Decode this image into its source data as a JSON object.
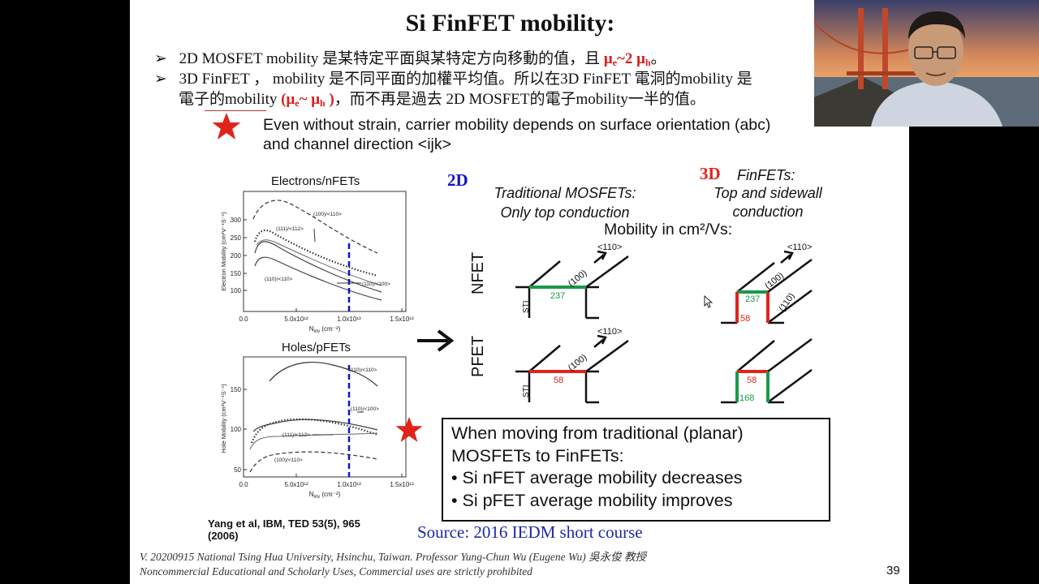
{
  "slide": {
    "title": "Si FinFET mobility:",
    "bullets": [
      {
        "arrow": "➢",
        "pre": "2D MOSFET mobility 是某特定平面與某特定方向移動的值，且 ",
        "mu_e": "μ",
        "e_sub": "e",
        "mid": "~2 ",
        "mu_h": "μ",
        "h_sub": "h",
        "post": "。"
      },
      {
        "arrow": "➢",
        "line1": "3D FinFET ， mobility 是不同平面的加權平均值。所以在3D FinFET 電洞的mobility 是",
        "line2_pre": "電子的mobility ",
        "paren": "(μ",
        "e_sub": "e",
        "tilde": "~ μ",
        "h_sub": "h",
        "close": " )",
        "line2_post": "，而不再是過去 2D MOSFET的電子mobility一半的值。"
      }
    ],
    "strain_note": [
      "Even without strain, carrier mobility depends on surface orientation (abc)",
      "and channel direction <ijk>"
    ],
    "plots": {
      "electrons": {
        "title": "Electrons/nFETs",
        "ylabel": "Electron Mobility (cm²V⁻¹S⁻¹)",
        "xlabel": "N",
        "xlabel_sub": "inv",
        "xlabel_unit": " (cm⁻²)",
        "yticks": [
          "300",
          "250",
          "200",
          "150",
          "100"
        ],
        "xticks": [
          "0.0",
          "5.0x10¹²",
          "1.0x10¹³",
          "1.5x10¹³"
        ],
        "curve_labels": [
          "(100)/<110>",
          "(111)/<112>",
          "(110)/<110>",
          "(110)/<100>"
        ]
      },
      "holes": {
        "title": "Holes/pFETs",
        "ylabel": "Hole Mobility (cm²V⁻¹S⁻¹)",
        "xlabel": "N",
        "xlabel_sub": "inv",
        "xlabel_unit": " (cm⁻²)",
        "yticks": [
          "150",
          "100",
          "50"
        ],
        "xticks": [
          "0.0",
          "5.0x10¹²",
          "1.0x10¹³",
          "1.5x10¹³"
        ],
        "curve_labels": [
          "(110)/<110>",
          "(110)/<100>",
          "(111)/<112>",
          "(100)/<110>"
        ]
      }
    },
    "citation": [
      "Yang et al, IBM, TED 53(5), 965",
      "(2006)"
    ],
    "label_2d": "2D",
    "label_3d": "3D",
    "traditional": [
      "Traditional MOSFETs:",
      "Only top conduction"
    ],
    "finfets": [
      "FinFETs:",
      "Top and sidewall",
      "conduction"
    ],
    "mobility_units": "Mobility in cm²/Vs:",
    "row_labels": {
      "nfet": "NFET",
      "pfet": "PFET"
    },
    "diagram": {
      "sti": "STI",
      "dir110": "<110>",
      "plane100": "(100)",
      "plane110": "(110)",
      "nfet_2d_top": "237",
      "nfet_3d_top": "237",
      "nfet_3d_side": "58",
      "pfet_2d_top": "58",
      "pfet_3d_top": "58",
      "pfet_3d_side": "168"
    },
    "summary": [
      "When moving from traditional (planar)",
      "MOSFETs to FinFETs:",
      "• Si nFET average mobility decreases",
      "• Si pFET average mobility improves"
    ],
    "source": "Source: 2016 IEDM short course",
    "footer": [
      "V. 20200915 National Tsing Hua University, Hsinchu, Taiwan. Professor Yung-Chun Wu (Eugene Wu) 吳永俊 教授",
      "Noncommercial Educational and Scholarly Uses, Commercial uses are strictly prohibited"
    ],
    "page_number": "39",
    "colors": {
      "red": "#e0241c",
      "green": "#1a9a4a",
      "blue": "#1414c8",
      "source_blue": "#1a2aa8"
    }
  }
}
